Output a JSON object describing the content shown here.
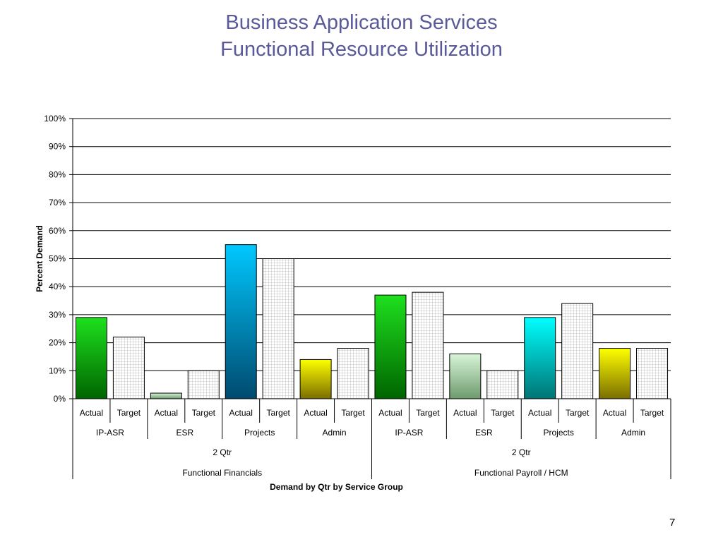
{
  "slide": {
    "title_line1": "Business Application Services",
    "title_line2": "Functional Resource Utilization",
    "page_number": "7"
  },
  "chart_data": {
    "type": "bar",
    "title": "",
    "ylabel": "Percent Demand",
    "xlabel": "Demand by Qtr by Service Group",
    "ylim": [
      0,
      100
    ],
    "yticks": [
      "0%",
      "10%",
      "20%",
      "30%",
      "40%",
      "50%",
      "60%",
      "70%",
      "80%",
      "90%",
      "100%"
    ],
    "grid": true,
    "legend": "none",
    "categories": [
      "Actual",
      "Target",
      "Actual",
      "Target",
      "Actual",
      "Target",
      "Actual",
      "Target",
      "Actual",
      "Target",
      "Actual",
      "Target",
      "Actual",
      "Target",
      "Actual",
      "Target"
    ],
    "values": [
      29,
      22,
      2,
      10,
      55,
      50,
      14,
      18,
      37,
      38,
      16,
      10,
      29,
      34,
      18,
      18
    ],
    "bar_colors": [
      "#00aa00",
      "hatch",
      "#9ad89a",
      "hatch",
      "#0099cc",
      "hatch",
      "#c8c800",
      "hatch",
      "#00aa00",
      "hatch",
      "#9ad89a",
      "hatch",
      "#00b8b8",
      "hatch",
      "#c8c800",
      "hatch"
    ],
    "service_groups": [
      "IP-ASR",
      "ESR",
      "Projects",
      "Admin",
      "IP-ASR",
      "ESR",
      "Projects",
      "Admin"
    ],
    "quarters": [
      "2 Qtr",
      "2 Qtr"
    ],
    "functions": [
      "Functional Financials",
      "Functional Payroll / HCM"
    ]
  }
}
